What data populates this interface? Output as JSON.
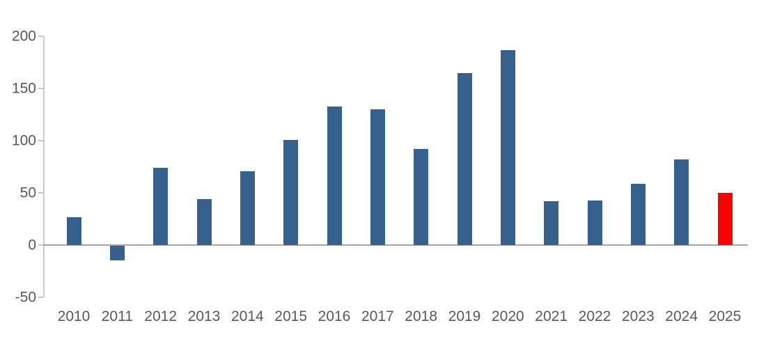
{
  "chart_data": {
    "type": "bar",
    "title": "",
    "xlabel": "",
    "ylabel": "",
    "categories": [
      "2010",
      "2011",
      "2012",
      "2013",
      "2014",
      "2015",
      "2016",
      "2017",
      "2018",
      "2019",
      "2020",
      "2021",
      "2022",
      "2023",
      "2024",
      "2025"
    ],
    "values": [
      27,
      -14,
      74,
      44,
      71,
      101,
      133,
      130,
      92,
      165,
      187,
      42,
      43,
      59,
      82,
      50
    ],
    "highlight_category": "2025",
    "bar_color": "#36618E",
    "highlight_color": "#FF0000",
    "ylim": [
      -50,
      200
    ],
    "yticks": [
      200,
      150,
      100,
      50,
      0,
      -50
    ],
    "grid": false,
    "legend": false,
    "axis_label_color": "#595959",
    "axis_line_color": "#C9C9C9",
    "zero_line_color": "#A6A6A6"
  }
}
